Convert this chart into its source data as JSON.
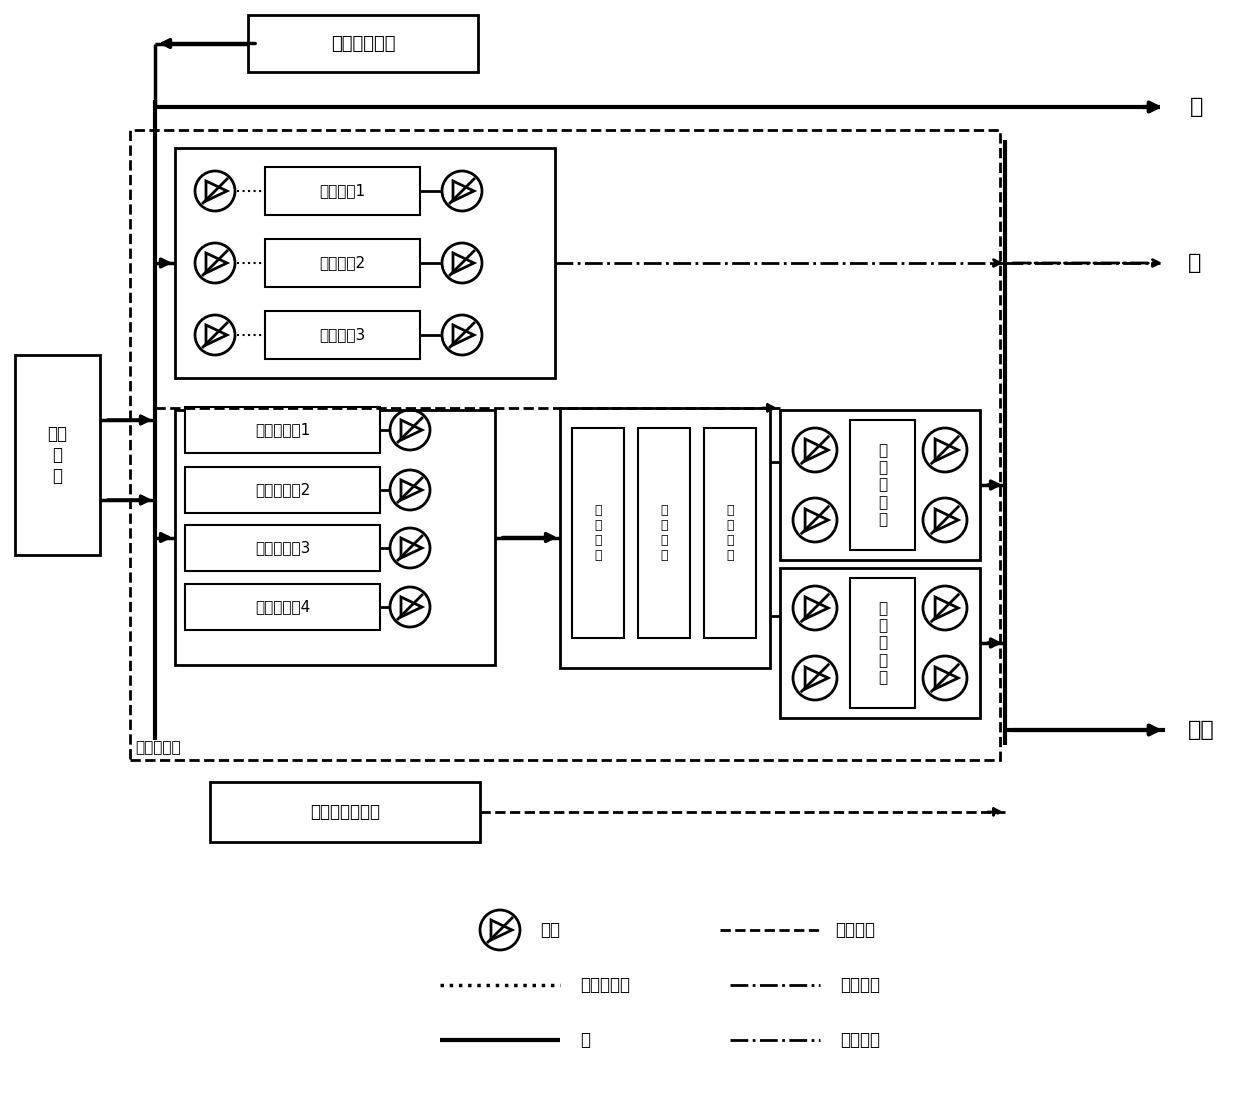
{
  "bg_color": "#ffffff",
  "line_color": "#000000",
  "labels": {
    "pv_system": "光伏发电系统",
    "external_grid": "外部\n电\n网",
    "geo_pump1": "地源热泵1",
    "geo_pump2": "地源热泵2",
    "geo_pump3": "地源热泵3",
    "boiler1": "承压电锅炉1",
    "boiler2": "承压电锅炉2",
    "boiler3": "承压电锅炉3",
    "boiler4": "承压电锅炉4",
    "tank1": "蓄\n热\n水\n箱",
    "tank2": "蓄\n热\n水\n箱",
    "tank3": "蓄\n热\n水\n箱",
    "hex1": "板\n式\n换\n热\n器",
    "hex2": "板\n式\n换\n热\n器",
    "energy_station": "集中能源站",
    "solar_system": "太阳能热水系统",
    "output_elec": "电",
    "output_heat": "热",
    "output_hotwater": "热水",
    "legend_pump": "水泵",
    "legend_high_temp": "高温热水",
    "legend_geo_side": "地源侧热水",
    "legend_domestic": "生活热水",
    "legend_elec": "电",
    "legend_aircon": "空调热水"
  }
}
